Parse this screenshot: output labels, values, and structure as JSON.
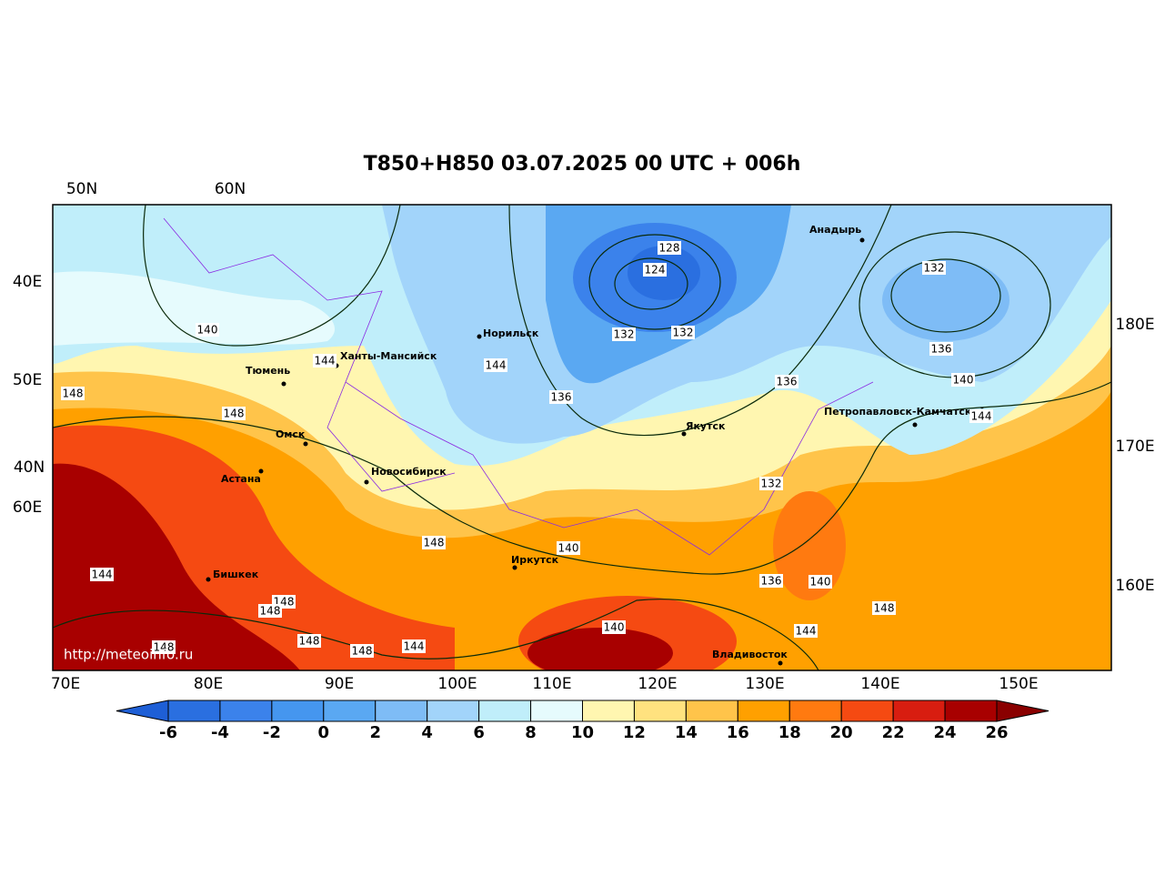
{
  "title": "T850+H850 03.07.2025 00 UTC + 006h",
  "top_labels": [
    "50N",
    "60N"
  ],
  "left_labels": [
    "40E",
    "50E",
    "40N",
    "60E"
  ],
  "right_labels": [
    "180E",
    "170E",
    "160E"
  ],
  "bottom_labels": [
    "70E",
    "80E",
    "90E",
    "100E",
    "110E",
    "120E",
    "130E",
    "140E",
    "150E"
  ],
  "cities": [
    "Норильск",
    "Ханты-Мансийск",
    "Тюмень",
    "Омск",
    "Астана",
    "Новосибирск",
    "Иркутск",
    "Якутск",
    "Анадырь",
    "Петропавловск-Камчатский",
    "Бишкек",
    "Владивосток"
  ],
  "contour_labels": [
    128,
    124,
    132,
    132,
    132,
    136,
    140,
    144,
    136,
    136,
    144,
    144,
    140,
    148,
    148,
    132,
    148,
    140,
    136,
    140,
    148,
    144,
    140,
    144,
    148,
    148,
    148,
    148,
    144,
    148
  ],
  "credit": "http://meteoinfo.ru",
  "colorbar": {
    "ticks": [
      -6,
      -4,
      -2,
      0,
      2,
      4,
      6,
      8,
      10,
      12,
      14,
      16,
      18,
      20,
      22,
      24,
      26
    ],
    "colors": [
      "#2a6fe0",
      "#3b82eb",
      "#4596ef",
      "#5aa8f2",
      "#7ebcf6",
      "#a2d4fa",
      "#c0eefa",
      "#e6fbfd",
      "#fff6b0",
      "#ffe27f",
      "#ffc44a",
      "#ffa000",
      "#ff7a10",
      "#f54a12",
      "#d81d10",
      "#a80000"
    ],
    "under": "#1e5fd6",
    "over": "#8a0000"
  }
}
